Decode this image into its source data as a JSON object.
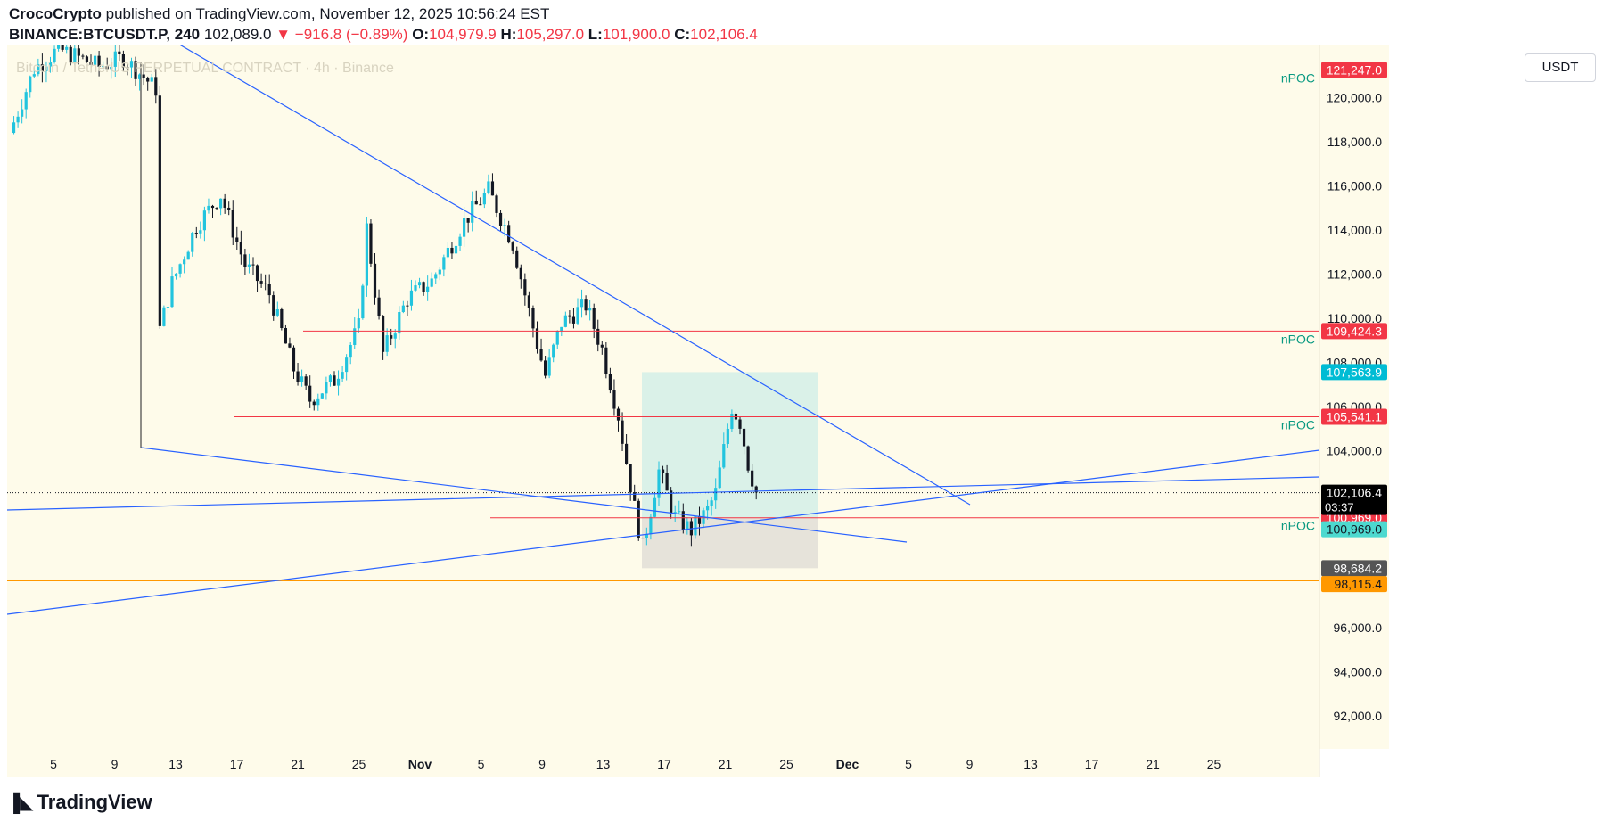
{
  "header": {
    "author": "CrocoCrypto",
    "published": "published on TradingView.com, November 12, 2025 10:56:24 EST",
    "symbol": "BINANCE:BTCUSDT.P, 240",
    "last": "102,089.0",
    "change": "−916.8 (−0.89%)",
    "o_label": "O:",
    "o": "104,979.9",
    "h_label": "H:",
    "h": "105,297.0",
    "l_label": "L:",
    "l": "101,900.0",
    "c_label": "C:",
    "c": "102,106.4"
  },
  "watermark": "Bitcoin / TetherUS PERPETUAL CONTRACT · 4h · Binance",
  "currency": "USDT",
  "brand": "TradingView",
  "colors": {
    "background": "#fefbea",
    "up": "#22c4de",
    "down": "#131722",
    "red_line": "#f23645",
    "blue_line": "#2962ff",
    "orange": "#ff9800",
    "target_zone": "#cdeee7",
    "stop_zone": "#e3e0d8"
  },
  "chart_data": {
    "type": "candlestick",
    "title": "BTCUSDT.P 4h",
    "ylim": [
      90500,
      122400
    ],
    "y_ticks": [
      "92,000.0",
      "94,000.0",
      "96,000.0",
      "104,000.0",
      "106,000.0",
      "108,000.0",
      "110,000.0",
      "112,000.0",
      "114,000.0",
      "116,000.0",
      "118,000.0",
      "120,000.0"
    ],
    "y_tick_values": [
      92000,
      94000,
      96000,
      104000,
      106000,
      108000,
      110000,
      112000,
      114000,
      116000,
      118000,
      120000
    ],
    "x_labels": [
      "5",
      "9",
      "13",
      "17",
      "21",
      "25",
      "Nov",
      "5",
      "9",
      "13",
      "17",
      "21",
      "25",
      "Dec",
      "5",
      "9",
      "13",
      "17",
      "21",
      "25"
    ],
    "x_label_bold": [
      "Nov",
      "Dec"
    ],
    "price_path": [
      {
        "bar": 0,
        "price": 118400
      },
      {
        "bar": 6,
        "price": 121300
      },
      {
        "bar": 12,
        "price": 122200
      },
      {
        "bar": 22,
        "price": 121400
      },
      {
        "bar": 28,
        "price": 121800
      },
      {
        "bar": 36,
        "price": 120400
      },
      {
        "bar": 37,
        "price": 109500
      },
      {
        "bar": 40,
        "price": 111600
      },
      {
        "bar": 46,
        "price": 114200
      },
      {
        "bar": 52,
        "price": 115600
      },
      {
        "bar": 58,
        "price": 112400
      },
      {
        "bar": 64,
        "price": 111100
      },
      {
        "bar": 70,
        "price": 107700
      },
      {
        "bar": 74,
        "price": 106300
      },
      {
        "bar": 80,
        "price": 107200
      },
      {
        "bar": 86,
        "price": 109600
      },
      {
        "bar": 88,
        "price": 114100
      },
      {
        "bar": 92,
        "price": 108400
      },
      {
        "bar": 98,
        "price": 110900
      },
      {
        "bar": 104,
        "price": 111700
      },
      {
        "bar": 112,
        "price": 114400
      },
      {
        "bar": 118,
        "price": 115800
      },
      {
        "bar": 124,
        "price": 113400
      },
      {
        "bar": 128,
        "price": 110300
      },
      {
        "bar": 132,
        "price": 107400
      },
      {
        "bar": 136,
        "price": 109800
      },
      {
        "bar": 142,
        "price": 110600
      },
      {
        "bar": 146,
        "price": 108600
      },
      {
        "bar": 150,
        "price": 105600
      },
      {
        "bar": 154,
        "price": 101400
      },
      {
        "bar": 156,
        "price": 99600
      },
      {
        "bar": 160,
        "price": 103100
      },
      {
        "bar": 164,
        "price": 101000
      },
      {
        "bar": 168,
        "price": 100400
      },
      {
        "bar": 172,
        "price": 101300
      },
      {
        "bar": 174,
        "price": 102100
      },
      {
        "bar": 178,
        "price": 106000
      },
      {
        "bar": 180,
        "price": 105300
      },
      {
        "bar": 182,
        "price": 103400
      },
      {
        "bar": 184,
        "price": 102106
      }
    ],
    "horizontal_levels": [
      {
        "price": 121247.0,
        "label": "121,247.0",
        "note": "nPOC"
      },
      {
        "price": 109424.3,
        "label": "109,424.3",
        "note": "nPOC"
      },
      {
        "price": 105541.1,
        "label": "105,541.1",
        "note": "nPOC"
      },
      {
        "price": 100969.0,
        "label": "100,969.0",
        "note": "nPOC"
      }
    ],
    "current_price": {
      "value": 102106.4,
      "label": "102,106.4",
      "countdown": "03:37"
    },
    "position": {
      "target": 107563.9,
      "target_label": "107,563.9",
      "entry": 100969.0,
      "entry_label": "100,969.0",
      "stop": 98684.2,
      "stop_label": "98,684.2"
    },
    "orange_level": {
      "price": 98115.4,
      "label": "98,115.4"
    }
  }
}
